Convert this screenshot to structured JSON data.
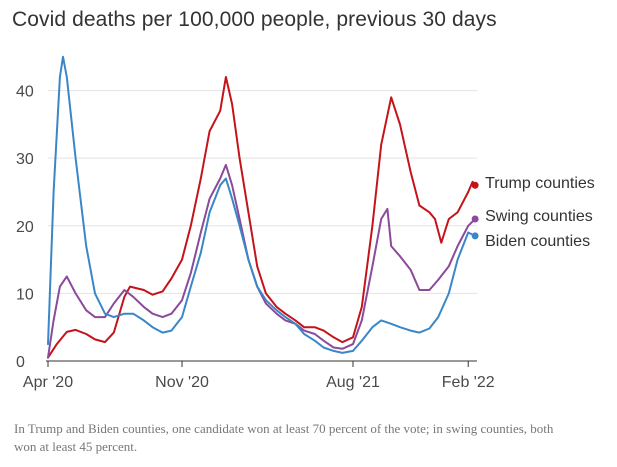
{
  "chart_data": {
    "type": "line",
    "title": "Covid deaths per 100,000 people, previous 30 days",
    "xlabel": "",
    "ylabel": "",
    "x_range": [
      "2020-04-01",
      "2022-02-15"
    ],
    "ylim": [
      0,
      46
    ],
    "y_ticks": [
      0,
      10,
      20,
      30,
      40
    ],
    "x_ticks": [
      {
        "date": "2020-04-01",
        "label": "Apr '20"
      },
      {
        "date": "2020-11-01",
        "label": "Nov '20"
      },
      {
        "date": "2021-08-01",
        "label": "Aug '21"
      },
      {
        "date": "2022-02-01",
        "label": "Feb '22"
      }
    ],
    "grid": "horizontal",
    "series": [
      {
        "name": "Trump counties",
        "color": "#c4141b",
        "points": [
          [
            "2020-04-01",
            0.5
          ],
          [
            "2020-04-15",
            2.5
          ],
          [
            "2020-05-01",
            4.3
          ],
          [
            "2020-05-15",
            4.6
          ],
          [
            "2020-06-01",
            4.0
          ],
          [
            "2020-06-15",
            3.2
          ],
          [
            "2020-07-01",
            2.8
          ],
          [
            "2020-07-15",
            4.2
          ],
          [
            "2020-08-01",
            9.5
          ],
          [
            "2020-08-10",
            11.0
          ],
          [
            "2020-09-01",
            10.5
          ],
          [
            "2020-09-15",
            9.8
          ],
          [
            "2020-10-01",
            10.3
          ],
          [
            "2020-10-15",
            12.2
          ],
          [
            "2020-11-01",
            15.0
          ],
          [
            "2020-11-15",
            20.0
          ],
          [
            "2020-12-01",
            27.0
          ],
          [
            "2020-12-15",
            34.0
          ],
          [
            "2021-01-01",
            37.0
          ],
          [
            "2021-01-10",
            42.0
          ],
          [
            "2021-01-20",
            38.0
          ],
          [
            "2021-02-01",
            30.0
          ],
          [
            "2021-02-15",
            22.0
          ],
          [
            "2021-03-01",
            14.0
          ],
          [
            "2021-03-15",
            10.0
          ],
          [
            "2021-04-01",
            8.0
          ],
          [
            "2021-04-15",
            7.0
          ],
          [
            "2021-05-01",
            6.0
          ],
          [
            "2021-05-15",
            5.0
          ],
          [
            "2021-06-01",
            5.0
          ],
          [
            "2021-06-15",
            4.5
          ],
          [
            "2021-07-01",
            3.5
          ],
          [
            "2021-07-15",
            2.8
          ],
          [
            "2021-08-01",
            3.5
          ],
          [
            "2021-08-15",
            8.0
          ],
          [
            "2021-09-01",
            20.0
          ],
          [
            "2021-09-15",
            32.0
          ],
          [
            "2021-10-01",
            39.0
          ],
          [
            "2021-10-15",
            35.0
          ],
          [
            "2021-11-01",
            28.0
          ],
          [
            "2021-11-15",
            23.0
          ],
          [
            "2021-12-01",
            22.0
          ],
          [
            "2021-12-10",
            21.0
          ],
          [
            "2021-12-20",
            17.5
          ],
          [
            "2022-01-01",
            21.0
          ],
          [
            "2022-01-15",
            22.0
          ],
          [
            "2022-02-01",
            25.0
          ],
          [
            "2022-02-08",
            26.5
          ],
          [
            "2022-02-12",
            26.0
          ]
        ]
      },
      {
        "name": "Swing counties",
        "color": "#8b4a9a",
        "points": [
          [
            "2020-04-01",
            0.5
          ],
          [
            "2020-04-10",
            6.0
          ],
          [
            "2020-04-20",
            11.0
          ],
          [
            "2020-05-01",
            12.5
          ],
          [
            "2020-05-15",
            10.0
          ],
          [
            "2020-06-01",
            7.5
          ],
          [
            "2020-06-15",
            6.5
          ],
          [
            "2020-07-01",
            6.5
          ],
          [
            "2020-07-15",
            8.5
          ],
          [
            "2020-08-01",
            10.5
          ],
          [
            "2020-08-15",
            9.5
          ],
          [
            "2020-09-01",
            8.0
          ],
          [
            "2020-09-15",
            7.0
          ],
          [
            "2020-10-01",
            6.5
          ],
          [
            "2020-10-15",
            7.0
          ],
          [
            "2020-11-01",
            9.0
          ],
          [
            "2020-11-15",
            13.0
          ],
          [
            "2020-12-01",
            19.0
          ],
          [
            "2020-12-15",
            24.0
          ],
          [
            "2021-01-01",
            27.0
          ],
          [
            "2021-01-10",
            29.0
          ],
          [
            "2021-01-20",
            26.0
          ],
          [
            "2021-02-01",
            21.0
          ],
          [
            "2021-02-15",
            15.0
          ],
          [
            "2021-03-01",
            11.0
          ],
          [
            "2021-03-15",
            8.5
          ],
          [
            "2021-04-01",
            7.0
          ],
          [
            "2021-04-15",
            6.0
          ],
          [
            "2021-05-01",
            5.5
          ],
          [
            "2021-05-15",
            4.5
          ],
          [
            "2021-06-01",
            4.0
          ],
          [
            "2021-06-15",
            3.0
          ],
          [
            "2021-07-01",
            2.0
          ],
          [
            "2021-07-15",
            1.8
          ],
          [
            "2021-08-01",
            2.5
          ],
          [
            "2021-08-15",
            6.0
          ],
          [
            "2021-09-01",
            14.0
          ],
          [
            "2021-09-15",
            21.0
          ],
          [
            "2021-09-25",
            22.5
          ],
          [
            "2021-10-01",
            17.0
          ],
          [
            "2021-10-15",
            15.5
          ],
          [
            "2021-11-01",
            13.5
          ],
          [
            "2021-11-15",
            10.5
          ],
          [
            "2021-12-01",
            10.5
          ],
          [
            "2021-12-15",
            12.0
          ],
          [
            "2022-01-01",
            14.0
          ],
          [
            "2022-01-15",
            17.0
          ],
          [
            "2022-02-01",
            20.0
          ],
          [
            "2022-02-12",
            21.0
          ]
        ]
      },
      {
        "name": "Biden counties",
        "color": "#3a87c8",
        "points": [
          [
            "2020-04-01",
            2.5
          ],
          [
            "2020-04-10",
            25.0
          ],
          [
            "2020-04-20",
            42.0
          ],
          [
            "2020-04-25",
            45.0
          ],
          [
            "2020-05-01",
            42.0
          ],
          [
            "2020-05-15",
            30.0
          ],
          [
            "2020-06-01",
            17.0
          ],
          [
            "2020-06-15",
            10.0
          ],
          [
            "2020-07-01",
            7.0
          ],
          [
            "2020-07-15",
            6.5
          ],
          [
            "2020-08-01",
            7.0
          ],
          [
            "2020-08-15",
            7.0
          ],
          [
            "2020-09-01",
            6.0
          ],
          [
            "2020-09-15",
            5.0
          ],
          [
            "2020-10-01",
            4.2
          ],
          [
            "2020-10-15",
            4.5
          ],
          [
            "2020-11-01",
            6.5
          ],
          [
            "2020-11-15",
            11.0
          ],
          [
            "2020-12-01",
            16.0
          ],
          [
            "2020-12-15",
            22.0
          ],
          [
            "2021-01-01",
            26.0
          ],
          [
            "2021-01-10",
            27.0
          ],
          [
            "2021-01-20",
            24.0
          ],
          [
            "2021-02-01",
            20.0
          ],
          [
            "2021-02-15",
            15.0
          ],
          [
            "2021-03-01",
            11.0
          ],
          [
            "2021-03-15",
            9.0
          ],
          [
            "2021-04-01",
            7.5
          ],
          [
            "2021-04-15",
            6.5
          ],
          [
            "2021-05-01",
            5.5
          ],
          [
            "2021-05-15",
            4.0
          ],
          [
            "2021-06-01",
            3.0
          ],
          [
            "2021-06-15",
            2.0
          ],
          [
            "2021-07-01",
            1.5
          ],
          [
            "2021-07-15",
            1.2
          ],
          [
            "2021-08-01",
            1.5
          ],
          [
            "2021-08-15",
            3.0
          ],
          [
            "2021-09-01",
            5.0
          ],
          [
            "2021-09-15",
            6.0
          ],
          [
            "2021-10-01",
            5.5
          ],
          [
            "2021-10-15",
            5.0
          ],
          [
            "2021-11-01",
            4.5
          ],
          [
            "2021-11-15",
            4.2
          ],
          [
            "2021-12-01",
            4.8
          ],
          [
            "2021-12-15",
            6.5
          ],
          [
            "2022-01-01",
            10.0
          ],
          [
            "2022-01-15",
            15.0
          ],
          [
            "2022-02-01",
            19.0
          ],
          [
            "2022-02-12",
            18.5
          ]
        ]
      }
    ]
  },
  "note": "In Trump and Biden counties, one candidate won at least 70 percent of the vote; in swing counties, both won at least 45 percent."
}
